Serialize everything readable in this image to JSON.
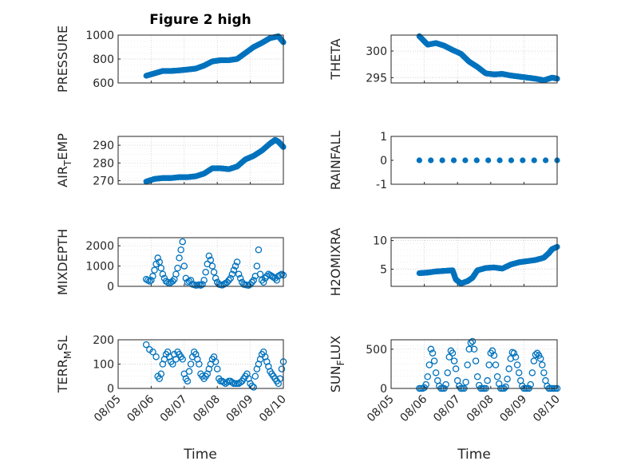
{
  "figure": {
    "title": "Figure 2 high",
    "xlabel": "Time",
    "marker_color": "#0072BD",
    "x_ticks": [
      "08/05",
      "08/06",
      "08/07",
      "08/08",
      "08/09",
      "08/10"
    ]
  },
  "chart_data": [
    {
      "type": "line",
      "name": "PRESSURE",
      "ylabel": "PRESSURE",
      "ylim": [
        600,
        1000
      ],
      "yticks": [
        600,
        800,
        1000
      ],
      "yticklabels": [
        "600",
        "800",
        "1000"
      ],
      "marker": "filled",
      "grid": true,
      "x_start": "08/05 21:00",
      "x_end": "08/09 24:00",
      "x": [
        0.85,
        1.1,
        1.35,
        1.6,
        1.85,
        2.1,
        2.35,
        2.6,
        2.85,
        3.1,
        3.35,
        3.6,
        3.85,
        4.1,
        4.35,
        4.6,
        4.85,
        5.0
      ],
      "values": [
        660,
        680,
        700,
        700,
        705,
        712,
        720,
        745,
        780,
        790,
        790,
        800,
        850,
        900,
        935,
        975,
        990,
        940
      ]
    },
    {
      "type": "line",
      "name": "THETA",
      "ylabel": "THETA",
      "ylim": [
        294,
        303
      ],
      "yticks": [
        295,
        300
      ],
      "yticklabels": [
        "295",
        "300"
      ],
      "marker": "filled",
      "grid": true,
      "x": [
        0.85,
        1.1,
        1.35,
        1.6,
        1.85,
        2.1,
        2.35,
        2.6,
        2.85,
        3.1,
        3.35,
        3.6,
        3.85,
        4.1,
        4.35,
        4.6,
        4.85,
        5.0
      ],
      "values": [
        302.8,
        301.2,
        301.5,
        301.0,
        300.2,
        299.5,
        298.0,
        297.0,
        295.8,
        295.6,
        295.7,
        295.4,
        295.2,
        295.0,
        294.8,
        294.5,
        295.0,
        294.8
      ]
    },
    {
      "type": "line",
      "name": "AIR_TEMP",
      "ylabel": "AIR_TEMP",
      "ylim": [
        268,
        295
      ],
      "yticks": [
        270,
        280,
        290
      ],
      "yticklabels": [
        "270",
        "280",
        "290"
      ],
      "marker": "filled",
      "grid": true,
      "x": [
        0.85,
        1.1,
        1.35,
        1.6,
        1.85,
        2.1,
        2.35,
        2.6,
        2.85,
        3.1,
        3.35,
        3.6,
        3.85,
        4.1,
        4.35,
        4.6,
        4.75,
        4.85,
        5.0
      ],
      "values": [
        269.5,
        271,
        271.5,
        271.5,
        272,
        272,
        272.5,
        274,
        277,
        277,
        276.5,
        278,
        282,
        284,
        287,
        291,
        293,
        292,
        289
      ]
    },
    {
      "type": "line",
      "name": "RAINFALL",
      "ylabel": "RAINFALL",
      "ylim": [
        -1,
        1
      ],
      "yticks": [
        -1,
        0,
        1
      ],
      "yticklabels": [
        "-1",
        "0",
        "1"
      ],
      "marker": "filled",
      "grid": false,
      "x": [
        0.85,
        5.0
      ],
      "values": [
        0,
        0
      ]
    },
    {
      "type": "scatter",
      "name": "MIXDEPTH",
      "ylabel": "MIXDEPTH",
      "ylim": [
        0,
        2400
      ],
      "yticks": [
        0,
        1000,
        2000
      ],
      "yticklabels": [
        "0",
        "1000",
        "2000"
      ],
      "marker": "open",
      "grid": true,
      "x": [
        0.85,
        0.9,
        0.95,
        1.0,
        1.05,
        1.1,
        1.15,
        1.2,
        1.25,
        1.3,
        1.35,
        1.4,
        1.45,
        1.5,
        1.55,
        1.6,
        1.65,
        1.7,
        1.75,
        1.8,
        1.85,
        1.9,
        1.95,
        2.0,
        2.05,
        2.1,
        2.15,
        2.2,
        2.25,
        2.3,
        2.35,
        2.4,
        2.45,
        2.5,
        2.55,
        2.6,
        2.65,
        2.7,
        2.75,
        2.8,
        2.85,
        2.9,
        2.95,
        3.0,
        3.05,
        3.1,
        3.15,
        3.2,
        3.25,
        3.3,
        3.35,
        3.4,
        3.45,
        3.5,
        3.55,
        3.6,
        3.65,
        3.7,
        3.75,
        3.8,
        3.85,
        3.9,
        3.95,
        4.0,
        4.05,
        4.1,
        4.15,
        4.2,
        4.25,
        4.3,
        4.35,
        4.4,
        4.45,
        4.5,
        4.55,
        4.6,
        4.65,
        4.7,
        4.75,
        4.8,
        4.85,
        4.9,
        4.95,
        5.0
      ],
      "values": [
        350,
        300,
        250,
        300,
        500,
        800,
        1100,
        1400,
        1200,
        900,
        600,
        400,
        250,
        200,
        150,
        200,
        250,
        350,
        600,
        900,
        1400,
        1800,
        2200,
        1000,
        400,
        200,
        250,
        300,
        100,
        80,
        50,
        60,
        80,
        50,
        100,
        300,
        700,
        1100,
        1500,
        1300,
        1000,
        700,
        400,
        200,
        100,
        80,
        60,
        100,
        150,
        200,
        300,
        400,
        600,
        800,
        1000,
        1200,
        600,
        400,
        200,
        100,
        80,
        60,
        50,
        100,
        200,
        300,
        500,
        1000,
        1800,
        600,
        300,
        200,
        400,
        500,
        600,
        550,
        500,
        450,
        400,
        300,
        500,
        550,
        600,
        550
      ]
    },
    {
      "type": "line",
      "name": "H2OMIXRA",
      "ylabel": "H2OMIXRA",
      "ylim": [
        2,
        10.5
      ],
      "yticks": [
        5,
        10
      ],
      "yticklabels": [
        "5",
        "10"
      ],
      "marker": "filled",
      "grid": true,
      "x": [
        0.85,
        1.1,
        1.35,
        1.6,
        1.85,
        1.95,
        2.1,
        2.3,
        2.45,
        2.6,
        2.85,
        3.1,
        3.35,
        3.6,
        3.85,
        4.1,
        4.35,
        4.6,
        4.75,
        4.85,
        5.0
      ],
      "values": [
        4.3,
        4.4,
        4.6,
        4.7,
        4.8,
        3.2,
        2.5,
        2.9,
        3.5,
        4.8,
        5.2,
        5.3,
        5.1,
        5.8,
        6.2,
        6.4,
        6.6,
        7.0,
        7.8,
        8.5,
        8.9
      ]
    },
    {
      "type": "scatter",
      "name": "TERR_MSL",
      "ylabel": "TERR_MSL",
      "ylim": [
        0,
        200
      ],
      "yticks": [
        0,
        100,
        200
      ],
      "yticklabels": [
        "0",
        "100",
        "200"
      ],
      "marker": "open",
      "grid": true,
      "x": [
        0.85,
        0.95,
        1.05,
        1.15,
        1.2,
        1.25,
        1.3,
        1.35,
        1.4,
        1.45,
        1.5,
        1.55,
        1.6,
        1.65,
        1.7,
        1.75,
        1.8,
        1.85,
        1.9,
        1.95,
        2.0,
        2.05,
        2.1,
        2.15,
        2.2,
        2.25,
        2.3,
        2.35,
        2.4,
        2.45,
        2.5,
        2.55,
        2.6,
        2.65,
        2.7,
        2.75,
        2.8,
        2.85,
        2.9,
        2.95,
        3.0,
        3.05,
        3.1,
        3.15,
        3.2,
        3.25,
        3.3,
        3.35,
        3.4,
        3.45,
        3.5,
        3.55,
        3.6,
        3.65,
        3.7,
        3.75,
        3.8,
        3.85,
        3.9,
        3.95,
        4.0,
        4.05,
        4.1,
        4.15,
        4.2,
        4.25,
        4.3,
        4.35,
        4.4,
        4.45,
        4.5,
        4.55,
        4.6,
        4.65,
        4.7,
        4.75,
        4.8,
        4.85,
        4.9,
        4.95,
        5.0
      ],
      "values": [
        180,
        160,
        150,
        130,
        50,
        40,
        60,
        100,
        120,
        140,
        150,
        130,
        110,
        100,
        140,
        120,
        150,
        140,
        130,
        120,
        60,
        40,
        30,
        70,
        100,
        130,
        150,
        140,
        120,
        100,
        60,
        50,
        40,
        50,
        60,
        80,
        100,
        120,
        130,
        110,
        80,
        40,
        30,
        30,
        25,
        20,
        25,
        30,
        30,
        25,
        20,
        20,
        20,
        20,
        25,
        30,
        40,
        50,
        60,
        40,
        20,
        10,
        5,
        50,
        80,
        100,
        120,
        140,
        150,
        130,
        110,
        90,
        70,
        60,
        50,
        40,
        30,
        20,
        40,
        80,
        110
      ]
    },
    {
      "type": "scatter",
      "name": "SUN_FLUX",
      "ylabel": "SUN_FLUX",
      "ylim": [
        0,
        620
      ],
      "yticks": [
        0,
        500
      ],
      "yticklabels": [
        "0",
        "500"
      ],
      "marker": "open",
      "grid": true,
      "x": [
        0.85,
        0.9,
        0.95,
        1.0,
        1.05,
        1.1,
        1.15,
        1.2,
        1.25,
        1.3,
        1.35,
        1.4,
        1.45,
        1.5,
        1.55,
        1.6,
        1.65,
        1.7,
        1.75,
        1.8,
        1.85,
        1.9,
        1.95,
        2.0,
        2.05,
        2.1,
        2.15,
        2.2,
        2.25,
        2.3,
        2.35,
        2.4,
        2.45,
        2.5,
        2.55,
        2.6,
        2.65,
        2.7,
        2.75,
        2.8,
        2.85,
        2.9,
        2.95,
        3.0,
        3.05,
        3.1,
        3.15,
        3.2,
        3.25,
        3.3,
        3.35,
        3.4,
        3.45,
        3.5,
        3.55,
        3.6,
        3.65,
        3.7,
        3.75,
        3.8,
        3.85,
        3.9,
        3.95,
        4.0,
        4.05,
        4.1,
        4.15,
        4.2,
        4.25,
        4.3,
        4.35,
        4.4,
        4.45,
        4.5,
        4.55,
        4.6,
        4.65,
        4.7,
        4.75,
        4.8,
        4.85,
        4.9,
        4.95,
        5.0
      ],
      "values": [
        0,
        0,
        0,
        10,
        50,
        150,
        300,
        500,
        450,
        350,
        200,
        100,
        30,
        0,
        0,
        0,
        50,
        200,
        400,
        480,
        450,
        350,
        250,
        100,
        30,
        0,
        0,
        0,
        80,
        300,
        500,
        580,
        600,
        500,
        350,
        150,
        40,
        0,
        0,
        0,
        0,
        100,
        300,
        450,
        480,
        420,
        300,
        150,
        60,
        0,
        0,
        0,
        20,
        120,
        250,
        380,
        460,
        450,
        400,
        300,
        200,
        100,
        30,
        0,
        0,
        0,
        0,
        50,
        200,
        350,
        430,
        450,
        420,
        380,
        300,
        200,
        100,
        30,
        0,
        0,
        0,
        0,
        0,
        0
      ]
    }
  ]
}
